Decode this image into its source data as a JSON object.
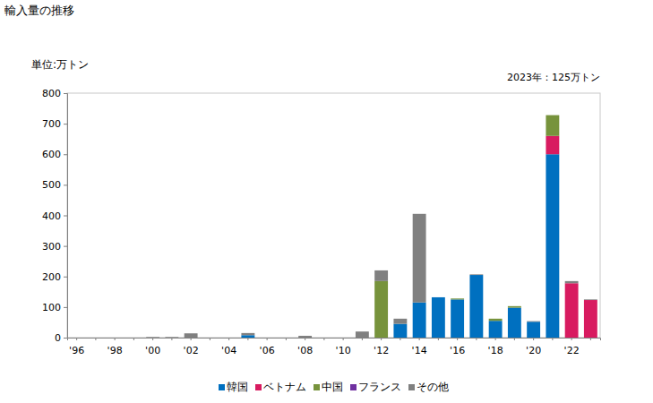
{
  "chart_data": {
    "type": "bar",
    "stacked": true,
    "title": "輸入量の推移",
    "y_label": "単位:万トン",
    "annotation": "2023年：125万トン",
    "categories": [
      "'96",
      null,
      "'98",
      null,
      "'00",
      null,
      "'02",
      null,
      "'04",
      null,
      "'06",
      null,
      "'08",
      null,
      "'10",
      null,
      "'12",
      null,
      "'14",
      null,
      "'16",
      null,
      "'18",
      null,
      "'20",
      null,
      "'22",
      null
    ],
    "series": [
      {
        "name": "韓国",
        "color": "#0070c0",
        "values": [
          0,
          0,
          0,
          0,
          0,
          0,
          0,
          0,
          0,
          8,
          0,
          0,
          0,
          0,
          0,
          0,
          0,
          45,
          115,
          132,
          125,
          205,
          55,
          98,
          52,
          600,
          0,
          0
        ]
      },
      {
        "name": "ベトナム",
        "color": "#d81b60",
        "values": [
          0,
          0,
          0,
          0,
          0,
          0,
          0,
          0,
          0,
          0,
          0,
          0,
          0,
          0,
          0,
          0,
          0,
          0,
          0,
          0,
          0,
          0,
          0,
          0,
          0,
          60,
          178,
          123
        ]
      },
      {
        "name": "中国",
        "color": "#77933c",
        "values": [
          0,
          0,
          0,
          0,
          0,
          0,
          0,
          0,
          0,
          0,
          0,
          0,
          0,
          0,
          0,
          0,
          185,
          0,
          0,
          0,
          3,
          0,
          7,
          5,
          0,
          68,
          0,
          0
        ]
      },
      {
        "name": "フランス",
        "color": "#7030a0",
        "values": [
          0,
          0,
          0,
          0,
          0,
          0,
          0,
          0,
          0,
          0,
          0,
          0,
          0,
          0,
          0,
          0,
          0,
          0,
          0,
          0,
          0,
          0,
          0,
          0,
          0,
          0,
          0,
          0
        ]
      },
      {
        "name": "その他",
        "color": "#808080",
        "values": [
          0,
          0,
          0,
          0,
          2,
          2,
          14,
          0,
          0,
          7,
          0,
          0,
          6,
          0,
          0,
          20,
          35,
          17,
          290,
          0,
          0,
          2,
          0,
          0,
          2,
          0,
          7,
          2
        ]
      }
    ],
    "ylim": [
      0,
      800
    ],
    "yticks": [
      0,
      100,
      200,
      300,
      400,
      500,
      600,
      700,
      800
    ],
    "grid": false,
    "legend": "bottom"
  }
}
